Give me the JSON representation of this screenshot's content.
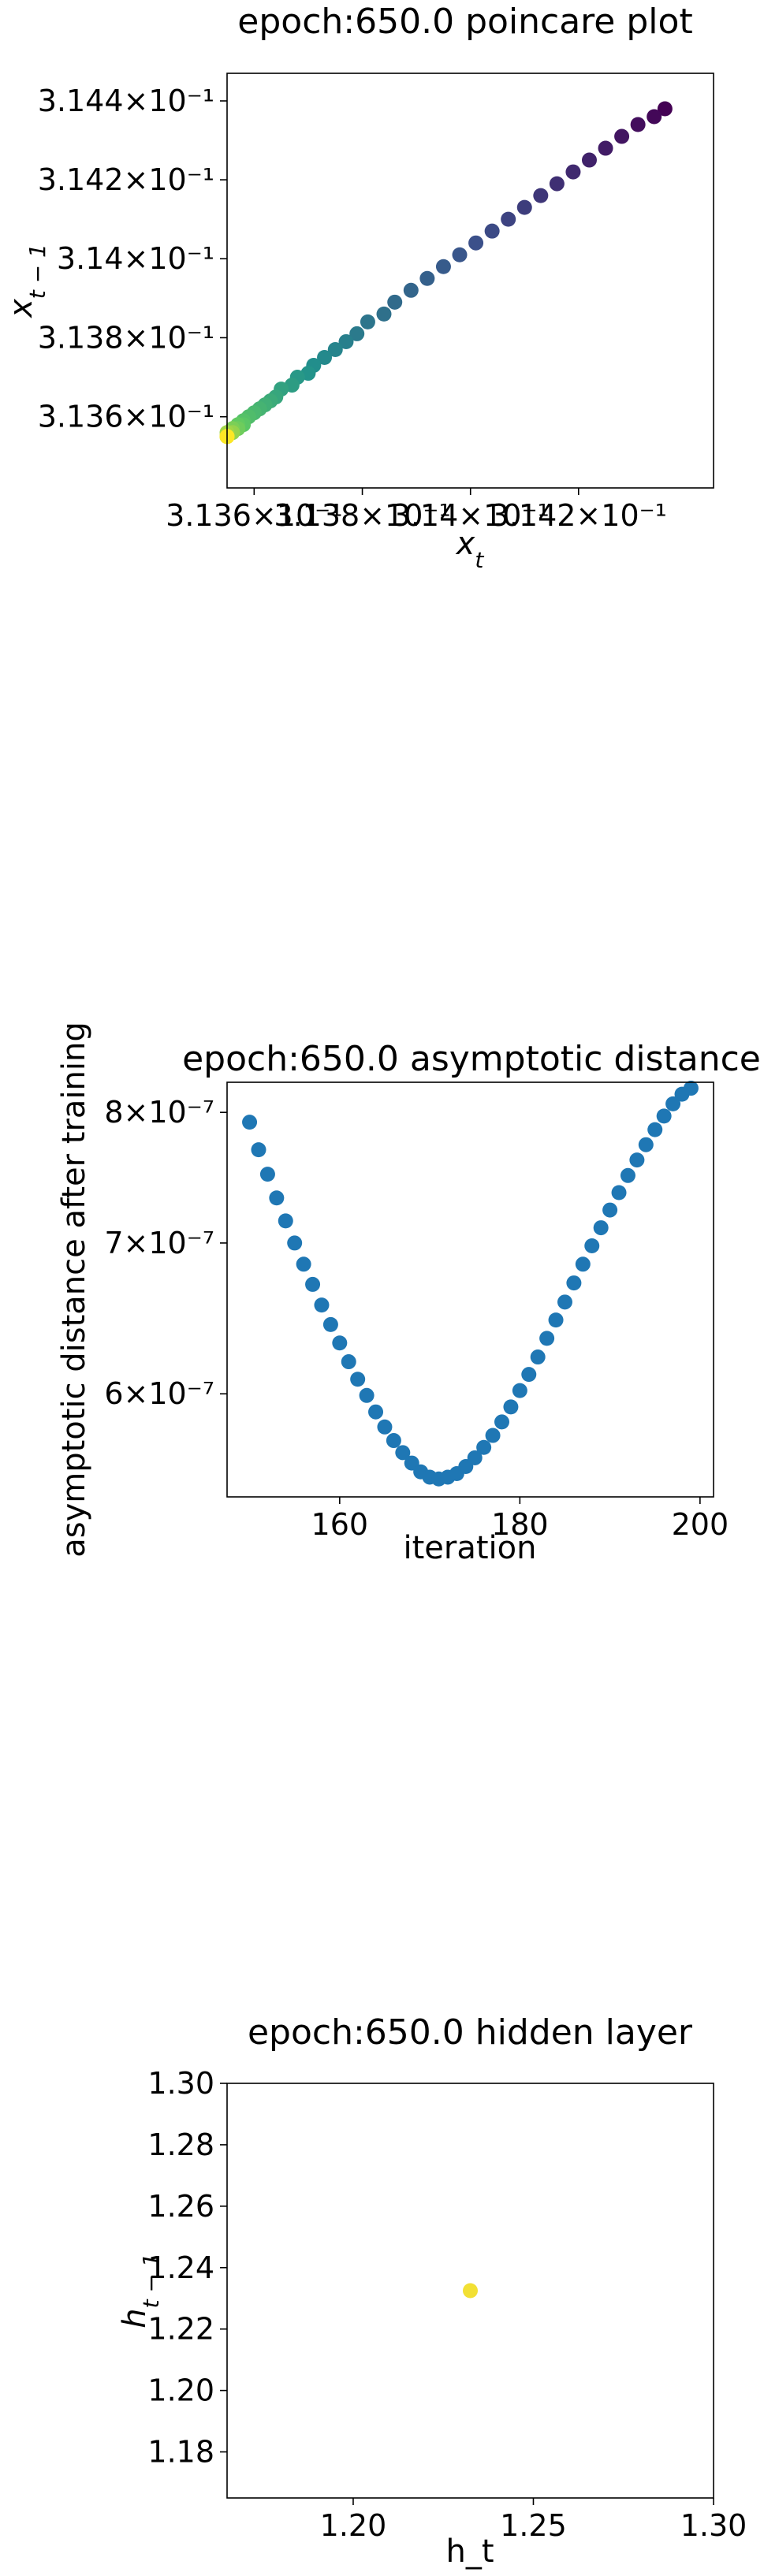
{
  "chart_data": [
    {
      "type": "scatter",
      "title": "epoch:650.0 poincare plot",
      "xlabel": "x_t",
      "ylabel": "x_{t-1}",
      "scale": "log",
      "colormap": "viridis",
      "xlim": [
        0.31355,
        0.31445
      ],
      "ylim": [
        0.31342,
        0.31447
      ],
      "xticks": [
        0.3136,
        0.3138,
        0.314,
        0.3142
      ],
      "xtick_labels": [
        "3.136×10⁻¹",
        "3.138×10⁻¹",
        "3.14×10⁻¹",
        "3.142×10⁻¹"
      ],
      "yticks": [
        0.3136,
        0.3138,
        0.314,
        0.3142,
        0.3144
      ],
      "ytick_labels": [
        "3.136×10⁻¹",
        "3.138×10⁻¹",
        "3.14×10⁻¹",
        "3.142×10⁻¹",
        "3.144×10⁻¹"
      ],
      "x": [
        0.31436,
        0.31434,
        0.31431,
        0.31428,
        0.31425,
        0.31422,
        0.31419,
        0.31416,
        0.31413,
        0.3141,
        0.31407,
        0.31404,
        0.31401,
        0.31398,
        0.31395,
        0.31392,
        0.31389,
        0.31386,
        0.31384,
        0.31381,
        0.31379,
        0.31377,
        0.31375,
        0.31373,
        0.31371,
        0.3137,
        0.31368,
        0.31367,
        0.31365,
        0.31364,
        0.31363,
        0.31362,
        0.31361,
        0.3136,
        0.31359,
        0.31358,
        0.31358,
        0.31357,
        0.31357,
        0.31356,
        0.31356,
        0.31356,
        0.31355,
        0.31355,
        0.31355,
        0.31355,
        0.31355,
        0.31355,
        0.31355,
        0.31355
      ],
      "y": [
        0.31438,
        0.31436,
        0.31434,
        0.31431,
        0.31428,
        0.31425,
        0.31422,
        0.31419,
        0.31416,
        0.31413,
        0.3141,
        0.31407,
        0.31404,
        0.31401,
        0.31398,
        0.31395,
        0.31392,
        0.31389,
        0.31386,
        0.31384,
        0.31381,
        0.31379,
        0.31377,
        0.31375,
        0.31373,
        0.31371,
        0.3137,
        0.31368,
        0.31367,
        0.31365,
        0.31364,
        0.31363,
        0.31362,
        0.31361,
        0.3136,
        0.31359,
        0.31358,
        0.31358,
        0.31357,
        0.31357,
        0.31356,
        0.31356,
        0.31356,
        0.31355,
        0.31355,
        0.31355,
        0.31355,
        0.31355,
        0.31355,
        0.31355
      ]
    },
    {
      "type": "scatter",
      "title": "epoch:650.0 asymptotic distance",
      "xlabel": "iteration",
      "ylabel": "asymptotic distance after training",
      "scale": "log-y",
      "color": "#1f77b4",
      "xlim": [
        147.5,
        201.5
      ],
      "ylim": [
        5.4e-07,
        8.25e-07
      ],
      "xticks": [
        160,
        180,
        200
      ],
      "xtick_labels": [
        "160",
        "180",
        "200"
      ],
      "yticks": [
        6e-07,
        7e-07,
        8e-07
      ],
      "ytick_labels": [
        "6×10⁻⁷",
        "7×10⁻⁷",
        "8×10⁻⁷"
      ],
      "x": [
        150,
        151,
        152,
        153,
        154,
        155,
        156,
        157,
        158,
        159,
        160,
        161,
        162,
        163,
        164,
        165,
        166,
        167,
        168,
        169,
        170,
        171,
        172,
        173,
        174,
        175,
        176,
        177,
        178,
        179,
        180,
        181,
        182,
        183,
        184,
        185,
        186,
        187,
        188,
        189,
        190,
        191,
        192,
        193,
        194,
        195,
        196,
        197,
        198,
        199
      ],
      "y": [
        7.92e-07,
        7.7e-07,
        7.51e-07,
        7.33e-07,
        7.16e-07,
        7e-07,
        6.85e-07,
        6.71e-07,
        6.57e-07,
        6.44e-07,
        6.32e-07,
        6.2e-07,
        6.09e-07,
        5.99e-07,
        5.89e-07,
        5.8e-07,
        5.72e-07,
        5.65e-07,
        5.59e-07,
        5.54e-07,
        5.51e-07,
        5.5e-07,
        5.51e-07,
        5.53e-07,
        5.57e-07,
        5.62e-07,
        5.68e-07,
        5.75e-07,
        5.83e-07,
        5.92e-07,
        6.02e-07,
        6.12e-07,
        6.23e-07,
        6.35e-07,
        6.47e-07,
        6.59e-07,
        6.72e-07,
        6.85e-07,
        6.98e-07,
        7.11e-07,
        7.24e-07,
        7.37e-07,
        7.5e-07,
        7.62e-07,
        7.74e-07,
        7.86e-07,
        7.97e-07,
        8.07e-07,
        8.15e-07,
        8.2e-07
      ]
    },
    {
      "type": "scatter",
      "title": "epoch:650.0 hidden layer",
      "xlabel": "h_t",
      "ylabel": "h_{t-1}",
      "color": "#f2e034",
      "xlim": [
        1.165,
        1.3
      ],
      "ylim": [
        1.165,
        1.3
      ],
      "xticks": [
        1.2,
        1.25,
        1.3
      ],
      "xtick_labels": [
        "1.20",
        "1.25",
        "1.30"
      ],
      "yticks": [
        1.18,
        1.2,
        1.22,
        1.24,
        1.26,
        1.28,
        1.3
      ],
      "ytick_labels": [
        "1.18",
        "1.20",
        "1.22",
        "1.24",
        "1.26",
        "1.28",
        "1.30"
      ],
      "x": [
        1.2325
      ],
      "y": [
        1.2325
      ]
    }
  ]
}
